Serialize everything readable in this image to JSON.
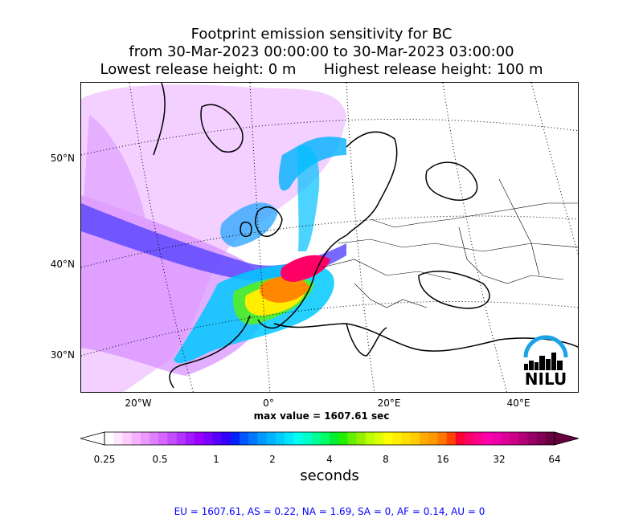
{
  "title": {
    "line1": "Footprint emission sensitivity for BC",
    "line2": "from 30-Mar-2023 00:00:00 to 30-Mar-2023 03:00:00",
    "line3_left": "Lowest release height: 0 m",
    "line3_right": "Highest release height: 100 m"
  },
  "map": {
    "lat_labels": [
      "50°N",
      "40°N",
      "30°N"
    ],
    "lon_labels": [
      "20°W",
      "0°",
      "20°E",
      "40°E"
    ],
    "logo_text": "NILU"
  },
  "max_value_text": "max value = 1607.61 sec",
  "colorbar": {
    "ticks": [
      "0.25",
      "0.5",
      "1",
      "2",
      "4",
      "8",
      "16",
      "32",
      "64"
    ],
    "units": "seconds",
    "colors": [
      "#ffffff",
      "#ffe6ff",
      "#ffccff",
      "#f5b3ff",
      "#eb99ff",
      "#e080ff",
      "#d466ff",
      "#c44dff",
      "#b333ff",
      "#a31aff",
      "#9900ff",
      "#7a00ff",
      "#5500ff",
      "#3300ff",
      "#0022ff",
      "#0055ff",
      "#0077ff",
      "#0099ff",
      "#00b3ff",
      "#00ccff",
      "#00e6ff",
      "#00ffee",
      "#00ffcc",
      "#00ff99",
      "#00ff66",
      "#00ee33",
      "#22ee00",
      "#66ee00",
      "#99ee00",
      "#bbff00",
      "#ddff00",
      "#ffff00",
      "#ffee00",
      "#ffdd00",
      "#ffcc00",
      "#ffaa00",
      "#ff9900",
      "#ff7700",
      "#ff4400",
      "#ff0033",
      "#ff0066",
      "#ff0088",
      "#ff00aa",
      "#ee00aa",
      "#dd0099",
      "#cc0088",
      "#b30077",
      "#990066",
      "#800055",
      "#66003f"
    ]
  },
  "footer": "EU = 1607.61,  AS = 0.22,  NA = 1.69,  SA = 0,  AF = 0.14,  AU = 0"
}
